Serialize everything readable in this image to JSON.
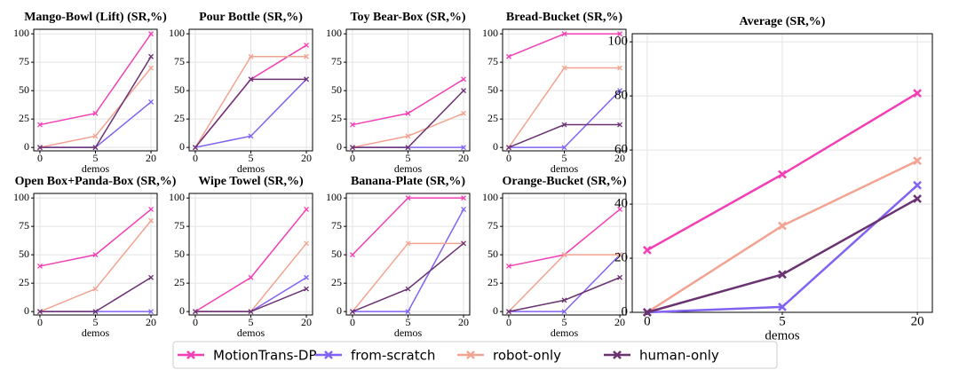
{
  "chart_data": [
    {
      "type": "line",
      "title": "Mango-Bowl (Lift) (SR,%)",
      "xlabel": "demos",
      "categories": [
        "0",
        "5",
        "20"
      ],
      "ylim": [
        -3,
        104
      ],
      "yticks": [
        0,
        25,
        50,
        75,
        100
      ],
      "grid": true,
      "series": [
        {
          "name": "MotionTrans-DP",
          "color": "#f23fb5",
          "values": [
            20,
            30,
            100
          ]
        },
        {
          "name": "from-scratch",
          "color": "#8262f2",
          "values": [
            0,
            0,
            40
          ]
        },
        {
          "name": "robot-only",
          "color": "#f2a391",
          "values": [
            0,
            10,
            70
          ]
        },
        {
          "name": "human-only",
          "color": "#6b3272",
          "values": [
            0,
            0,
            80
          ]
        }
      ]
    },
    {
      "type": "line",
      "title": "Pour Bottle (SR,%)",
      "xlabel": "demos",
      "categories": [
        "0",
        "5",
        "20"
      ],
      "ylim": [
        -3,
        104
      ],
      "yticks": [
        0,
        25,
        50,
        75,
        100
      ],
      "grid": true,
      "series": [
        {
          "color": "#f23fb5",
          "values": [
            0,
            60,
            90
          ]
        },
        {
          "color": "#8262f2",
          "values": [
            0,
            10,
            60
          ]
        },
        {
          "color": "#f2a391",
          "values": [
            0,
            80,
            80
          ]
        },
        {
          "color": "#6b3272",
          "values": [
            0,
            60,
            60
          ]
        }
      ]
    },
    {
      "type": "line",
      "title": "Toy Bear-Box (SR,%)",
      "xlabel": "demos",
      "categories": [
        "0",
        "5",
        "20"
      ],
      "ylim": [
        -3,
        104
      ],
      "yticks": [
        0,
        25,
        50,
        75,
        100
      ],
      "grid": true,
      "series": [
        {
          "color": "#f23fb5",
          "values": [
            20,
            30,
            60
          ]
        },
        {
          "color": "#8262f2",
          "values": [
            0,
            0,
            0
          ]
        },
        {
          "color": "#f2a391",
          "values": [
            0,
            10,
            30
          ]
        },
        {
          "color": "#6b3272",
          "values": [
            0,
            0,
            50
          ]
        }
      ]
    },
    {
      "type": "line",
      "title": "Bread-Bucket (SR,%)",
      "xlabel": "demos",
      "categories": [
        "0",
        "5",
        "20"
      ],
      "ylim": [
        -3,
        104
      ],
      "yticks": [
        0,
        25,
        50,
        75,
        100
      ],
      "grid": true,
      "series": [
        {
          "color": "#f23fb5",
          "values": [
            80,
            100,
            100
          ]
        },
        {
          "color": "#8262f2",
          "values": [
            0,
            0,
            50
          ]
        },
        {
          "color": "#f2a391",
          "values": [
            0,
            70,
            70
          ]
        },
        {
          "color": "#6b3272",
          "values": [
            0,
            20,
            20
          ]
        }
      ]
    },
    {
      "type": "line",
      "title": "Open Box+Panda-Box (SR,%)",
      "xlabel": "demos",
      "categories": [
        "0",
        "5",
        "20"
      ],
      "ylim": [
        -3,
        104
      ],
      "yticks": [
        0,
        25,
        50,
        75,
        100
      ],
      "grid": true,
      "series": [
        {
          "color": "#f23fb5",
          "values": [
            40,
            50,
            90
          ]
        },
        {
          "color": "#8262f2",
          "values": [
            0,
            0,
            0
          ]
        },
        {
          "color": "#f2a391",
          "values": [
            0,
            20,
            80
          ]
        },
        {
          "color": "#6b3272",
          "values": [
            0,
            0,
            30
          ]
        }
      ]
    },
    {
      "type": "line",
      "title": "Wipe Towel (SR,%)",
      "xlabel": "demos",
      "categories": [
        "0",
        "5",
        "20"
      ],
      "ylim": [
        -3,
        104
      ],
      "yticks": [
        0,
        25,
        50,
        75,
        100
      ],
      "grid": true,
      "series": [
        {
          "color": "#f23fb5",
          "values": [
            0,
            30,
            90
          ]
        },
        {
          "color": "#8262f2",
          "values": [
            0,
            0,
            30
          ]
        },
        {
          "color": "#f2a391",
          "values": [
            0,
            0,
            60
          ]
        },
        {
          "color": "#6b3272",
          "values": [
            0,
            0,
            20
          ]
        }
      ]
    },
    {
      "type": "line",
      "title": "Banana-Plate (SR,%)",
      "xlabel": "demos",
      "categories": [
        "0",
        "5",
        "20"
      ],
      "ylim": [
        -3,
        104
      ],
      "yticks": [
        0,
        25,
        50,
        75,
        100
      ],
      "grid": true,
      "series": [
        {
          "color": "#f23fb5",
          "values": [
            50,
            100,
            100
          ]
        },
        {
          "color": "#8262f2",
          "values": [
            0,
            0,
            90
          ]
        },
        {
          "color": "#f2a391",
          "values": [
            0,
            60,
            60
          ]
        },
        {
          "color": "#6b3272",
          "values": [
            0,
            20,
            60
          ]
        }
      ]
    },
    {
      "type": "line",
      "title": "Orange-Bucket (SR,%)",
      "xlabel": "demos",
      "categories": [
        "0",
        "5",
        "20"
      ],
      "ylim": [
        -3,
        104
      ],
      "yticks": [
        0,
        25,
        50,
        75,
        100
      ],
      "grid": true,
      "series": [
        {
          "color": "#f23fb5",
          "values": [
            40,
            50,
            90
          ]
        },
        {
          "color": "#8262f2",
          "values": [
            0,
            0,
            50
          ]
        },
        {
          "color": "#f2a391",
          "values": [
            0,
            50,
            50
          ]
        },
        {
          "color": "#6b3272",
          "values": [
            0,
            10,
            30
          ]
        }
      ]
    },
    {
      "type": "line",
      "title": "Average (SR,%)",
      "xlabel": "demos",
      "categories": [
        "0",
        "5",
        "20"
      ],
      "ylim": [
        0,
        103
      ],
      "yticks": [
        0,
        20,
        40,
        60,
        80,
        100
      ],
      "grid": true,
      "series": [
        {
          "color": "#f23fb5",
          "values": [
            23,
            51,
            81
          ]
        },
        {
          "color": "#8262f2",
          "values": [
            0,
            2,
            47
          ]
        },
        {
          "color": "#f2a391",
          "values": [
            0,
            32,
            56
          ]
        },
        {
          "color": "#6b3272",
          "values": [
            0,
            14,
            42
          ]
        }
      ]
    }
  ]
}
